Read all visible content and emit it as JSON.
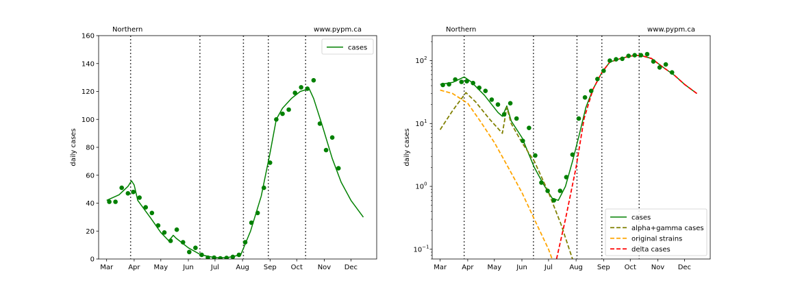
{
  "chart_data": [
    {
      "type": "line",
      "title_left": "Northern",
      "title_right": "www.pypm.ca",
      "ylabel": "daily cases",
      "xlabel": "",
      "y_scale": "linear",
      "ylim": [
        0,
        160
      ],
      "yticks": [
        0,
        20,
        40,
        60,
        80,
        100,
        120,
        140,
        160
      ],
      "ytick_labels": [
        "0",
        "20",
        "40",
        "60",
        "80",
        "100",
        "120",
        "140",
        "160"
      ],
      "x_ticks": [
        {
          "label": "Mar",
          "date": "2021-03-01"
        },
        {
          "label": "Apr",
          "date": "2021-04-01"
        },
        {
          "label": "May",
          "date": "2021-05-01"
        },
        {
          "label": "Jun",
          "date": "2021-06-01"
        },
        {
          "label": "Jul",
          "date": "2021-07-01"
        },
        {
          "label": "Aug",
          "date": "2021-08-01"
        },
        {
          "label": "Sep",
          "date": "2021-09-01"
        },
        {
          "label": "Oct",
          "date": "2021-10-01"
        },
        {
          "label": "Nov",
          "date": "2021-11-01"
        },
        {
          "label": "Dec",
          "date": "2021-12-01"
        }
      ],
      "xlim": [
        "2021-02-20",
        "2021-12-30"
      ],
      "vlines": [
        "2021-03-28",
        "2021-06-14",
        "2021-08-02",
        "2021-08-30",
        "2021-10-11"
      ],
      "grid": false,
      "legend_position": "top-right",
      "series": [
        {
          "name": "cases",
          "kind": "line",
          "color": "#008000",
          "dash": "solid",
          "points": [
            [
              "2021-03-01",
              42
            ],
            [
              "2021-03-15",
              46
            ],
            [
              "2021-03-25",
              52
            ],
            [
              "2021-03-29",
              56
            ],
            [
              "2021-04-01",
              53
            ],
            [
              "2021-04-05",
              42
            ],
            [
              "2021-04-20",
              29
            ],
            [
              "2021-05-01",
              19
            ],
            [
              "2021-05-10",
              13
            ],
            [
              "2021-05-15",
              17
            ],
            [
              "2021-05-18",
              15
            ],
            [
              "2021-06-01",
              8
            ],
            [
              "2021-06-15",
              3
            ],
            [
              "2021-07-01",
              1
            ],
            [
              "2021-07-15",
              1
            ],
            [
              "2021-07-30",
              3
            ],
            [
              "2021-08-10",
              20
            ],
            [
              "2021-08-22",
              45
            ],
            [
              "2021-09-01",
              76
            ],
            [
              "2021-09-08",
              100
            ],
            [
              "2021-09-15",
              108
            ],
            [
              "2021-09-25",
              115
            ],
            [
              "2021-10-05",
              120
            ],
            [
              "2021-10-15",
              122
            ],
            [
              "2021-10-20",
              115
            ],
            [
              "2021-10-30",
              95
            ],
            [
              "2021-11-10",
              72
            ],
            [
              "2021-11-20",
              55
            ],
            [
              "2021-12-01",
              42
            ],
            [
              "2021-12-15",
              30
            ]
          ]
        },
        {
          "name": "data",
          "kind": "scatter",
          "color": "#008000",
          "points": [
            [
              "2021-03-04",
              41
            ],
            [
              "2021-03-11",
              41
            ],
            [
              "2021-03-18",
              51
            ],
            [
              "2021-03-25",
              47
            ],
            [
              "2021-03-31",
              48
            ],
            [
              "2021-04-07",
              44
            ],
            [
              "2021-04-14",
              37
            ],
            [
              "2021-04-21",
              33
            ],
            [
              "2021-04-28",
              24
            ],
            [
              "2021-05-05",
              19
            ],
            [
              "2021-05-12",
              13
            ],
            [
              "2021-05-19",
              21
            ],
            [
              "2021-05-26",
              12
            ],
            [
              "2021-06-02",
              5
            ],
            [
              "2021-06-09",
              8
            ],
            [
              "2021-06-16",
              3
            ],
            [
              "2021-06-23",
              1
            ],
            [
              "2021-06-30",
              1
            ],
            [
              "2021-07-07",
              0.5
            ],
            [
              "2021-07-14",
              0.8
            ],
            [
              "2021-07-21",
              1.5
            ],
            [
              "2021-07-28",
              3
            ],
            [
              "2021-08-04",
              12
            ],
            [
              "2021-08-11",
              26
            ],
            [
              "2021-08-18",
              33
            ],
            [
              "2021-08-25",
              51
            ],
            [
              "2021-09-01",
              69
            ],
            [
              "2021-09-08",
              100
            ],
            [
              "2021-09-15",
              104
            ],
            [
              "2021-09-22",
              107
            ],
            [
              "2021-09-29",
              119
            ],
            [
              "2021-10-06",
              123
            ],
            [
              "2021-10-13",
              122
            ],
            [
              "2021-10-20",
              128
            ],
            [
              "2021-10-27",
              97
            ],
            [
              "2021-11-03",
              78
            ],
            [
              "2021-11-10",
              87
            ],
            [
              "2021-11-17",
              65
            ]
          ]
        }
      ],
      "legend": [
        {
          "label": "cases",
          "color": "#008000",
          "dash": "solid"
        }
      ]
    },
    {
      "type": "line",
      "title_left": "Northern",
      "title_right": "www.pypm.ca",
      "ylabel": "daily cases",
      "xlabel": "",
      "y_scale": "log",
      "ylim": [
        0.07,
        250
      ],
      "yticks": [
        0.1,
        1,
        10,
        100
      ],
      "ytick_labels": [
        {
          "base": "10",
          "exp": "−1"
        },
        {
          "base": "10",
          "exp": "0"
        },
        {
          "base": "10",
          "exp": "1"
        },
        {
          "base": "10",
          "exp": "2"
        }
      ],
      "x_ticks": [
        {
          "label": "Mar",
          "date": "2021-03-01"
        },
        {
          "label": "Apr",
          "date": "2021-04-01"
        },
        {
          "label": "May",
          "date": "2021-05-01"
        },
        {
          "label": "Jun",
          "date": "2021-06-01"
        },
        {
          "label": "Jul",
          "date": "2021-07-01"
        },
        {
          "label": "Aug",
          "date": "2021-08-01"
        },
        {
          "label": "Sep",
          "date": "2021-09-01"
        },
        {
          "label": "Oct",
          "date": "2021-10-01"
        },
        {
          "label": "Nov",
          "date": "2021-11-01"
        },
        {
          "label": "Dec",
          "date": "2021-12-01"
        }
      ],
      "xlim": [
        "2021-02-20",
        "2021-12-30"
      ],
      "vlines": [
        "2021-03-28",
        "2021-06-14",
        "2021-08-02",
        "2021-08-30",
        "2021-10-11"
      ],
      "grid": false,
      "legend_position": "bottom-right",
      "series": [
        {
          "name": "cases",
          "kind": "line",
          "color": "#008000",
          "dash": "solid",
          "points": [
            [
              "2021-03-01",
              42
            ],
            [
              "2021-03-15",
              45
            ],
            [
              "2021-03-28",
              55
            ],
            [
              "2021-04-05",
              46
            ],
            [
              "2021-04-20",
              28
            ],
            [
              "2021-05-05",
              15
            ],
            [
              "2021-05-10",
              13
            ],
            [
              "2021-05-15",
              19
            ],
            [
              "2021-05-20",
              11
            ],
            [
              "2021-06-01",
              6
            ],
            [
              "2021-06-15",
              2
            ],
            [
              "2021-06-25",
              1.1
            ],
            [
              "2021-07-05",
              0.65
            ],
            [
              "2021-07-12",
              0.6
            ],
            [
              "2021-07-20",
              1
            ],
            [
              "2021-07-28",
              2.5
            ],
            [
              "2021-08-05",
              7
            ],
            [
              "2021-08-12",
              18
            ],
            [
              "2021-08-20",
              35
            ],
            [
              "2021-08-30",
              65
            ],
            [
              "2021-09-08",
              95
            ],
            [
              "2021-09-20",
              108
            ],
            [
              "2021-10-01",
              118
            ],
            [
              "2021-10-12",
              122
            ],
            [
              "2021-10-25",
              108
            ],
            [
              "2021-11-05",
              82
            ],
            [
              "2021-11-20",
              58
            ],
            [
              "2021-12-01",
              42
            ],
            [
              "2021-12-15",
              30
            ]
          ]
        },
        {
          "name": "alpha+gamma cases",
          "kind": "line",
          "color": "#808000",
          "dash": "dashed",
          "points": [
            [
              "2021-03-01",
              8
            ],
            [
              "2021-03-15",
              16
            ],
            [
              "2021-03-30",
              31
            ],
            [
              "2021-04-10",
              22
            ],
            [
              "2021-04-25",
              12
            ],
            [
              "2021-05-10",
              7
            ],
            [
              "2021-05-15",
              18
            ],
            [
              "2021-05-20",
              10
            ],
            [
              "2021-06-01",
              5
            ],
            [
              "2021-06-15",
              2.5
            ],
            [
              "2021-07-01",
              0.8
            ],
            [
              "2021-07-15",
              0.25
            ],
            [
              "2021-07-28",
              0.07
            ]
          ]
        },
        {
          "name": "original strains",
          "kind": "line",
          "color": "#FFA500",
          "dash": "dashed",
          "points": [
            [
              "2021-03-01",
              34
            ],
            [
              "2021-03-15",
              30
            ],
            [
              "2021-04-01",
              21
            ],
            [
              "2021-04-15",
              11
            ],
            [
              "2021-05-01",
              5
            ],
            [
              "2021-05-15",
              2.2
            ],
            [
              "2021-06-01",
              0.8
            ],
            [
              "2021-06-15",
              0.3
            ],
            [
              "2021-07-01",
              0.1
            ],
            [
              "2021-07-05",
              0.07
            ]
          ]
        },
        {
          "name": "delta cases",
          "kind": "line",
          "color": "#FF0000",
          "dash": "dashed",
          "points": [
            [
              "2021-07-10",
              0.07
            ],
            [
              "2021-07-20",
              0.3
            ],
            [
              "2021-08-01",
              2
            ],
            [
              "2021-08-10",
              12
            ],
            [
              "2021-08-20",
              35
            ],
            [
              "2021-08-30",
              65
            ],
            [
              "2021-09-08",
              95
            ],
            [
              "2021-09-20",
              108
            ],
            [
              "2021-10-01",
              118
            ],
            [
              "2021-10-12",
              122
            ],
            [
              "2021-10-25",
              108
            ],
            [
              "2021-11-05",
              82
            ],
            [
              "2021-11-20",
              58
            ],
            [
              "2021-12-01",
              42
            ],
            [
              "2021-12-15",
              30
            ]
          ]
        },
        {
          "name": "data",
          "kind": "scatter",
          "color": "#008000",
          "points": [
            [
              "2021-03-04",
              41
            ],
            [
              "2021-03-11",
              42
            ],
            [
              "2021-03-18",
              50
            ],
            [
              "2021-03-25",
              46
            ],
            [
              "2021-03-31",
              47
            ],
            [
              "2021-04-07",
              44
            ],
            [
              "2021-04-14",
              37
            ],
            [
              "2021-04-21",
              33
            ],
            [
              "2021-04-28",
              24
            ],
            [
              "2021-05-05",
              20
            ],
            [
              "2021-05-12",
              14
            ],
            [
              "2021-05-19",
              21
            ],
            [
              "2021-05-26",
              12
            ],
            [
              "2021-06-02",
              5.3
            ],
            [
              "2021-06-09",
              8.5
            ],
            [
              "2021-06-16",
              3.1
            ],
            [
              "2021-06-23",
              1.15
            ],
            [
              "2021-06-30",
              0.85
            ],
            [
              "2021-07-07",
              0.6
            ],
            [
              "2021-07-14",
              0.85
            ],
            [
              "2021-07-21",
              1.4
            ],
            [
              "2021-07-28",
              3.2
            ],
            [
              "2021-08-04",
              12
            ],
            [
              "2021-08-11",
              26
            ],
            [
              "2021-08-18",
              33
            ],
            [
              "2021-08-25",
              51
            ],
            [
              "2021-09-01",
              69
            ],
            [
              "2021-09-08",
              100
            ],
            [
              "2021-09-15",
              105
            ],
            [
              "2021-09-22",
              107
            ],
            [
              "2021-09-29",
              119
            ],
            [
              "2021-10-06",
              122
            ],
            [
              "2021-10-13",
              122
            ],
            [
              "2021-10-20",
              127
            ],
            [
              "2021-10-27",
              97
            ],
            [
              "2021-11-03",
              78
            ],
            [
              "2021-11-10",
              87
            ],
            [
              "2021-11-17",
              65
            ]
          ]
        }
      ],
      "legend": [
        {
          "label": "cases",
          "color": "#008000",
          "dash": "solid"
        },
        {
          "label": "alpha+gamma cases",
          "color": "#808000",
          "dash": "dashed"
        },
        {
          "label": "original strains",
          "color": "#FFA500",
          "dash": "dashed"
        },
        {
          "label": "delta cases",
          "color": "#FF0000",
          "dash": "dashed"
        }
      ]
    }
  ]
}
